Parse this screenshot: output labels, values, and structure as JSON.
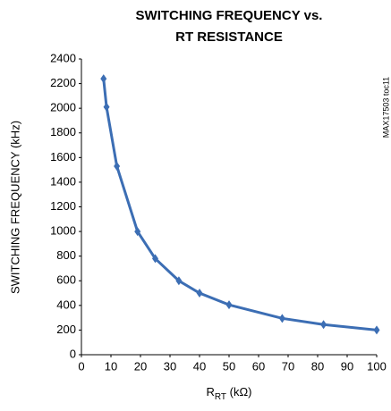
{
  "chart_data": {
    "type": "line",
    "title": [
      "SWITCHING FREQUENCY vs.",
      "RT RESISTANCE"
    ],
    "y_label": "SWITCHING FREQUENCY (kHz)",
    "x_label": [
      "R",
      "RT",
      " (kΩ)"
    ],
    "annotation": "MAX17503 toc11",
    "x": [
      7.5,
      8.5,
      12,
      19,
      25,
      33,
      40,
      50,
      68,
      82,
      100
    ],
    "series": [
      {
        "color": "#3c6eb4",
        "values": [
          2240,
          2010,
          1530,
          1000,
          780,
          600,
          500,
          405,
          295,
          245,
          200
        ]
      }
    ],
    "xlim": [
      0,
      100
    ],
    "xticks": [
      0,
      10,
      20,
      30,
      40,
      50,
      60,
      70,
      80,
      90,
      100
    ],
    "ylim": [
      0,
      2400
    ],
    "yticks": [
      0,
      200,
      400,
      600,
      800,
      1000,
      1200,
      1400,
      1600,
      1800,
      2000,
      2200,
      2400
    ],
    "grid": false
  }
}
